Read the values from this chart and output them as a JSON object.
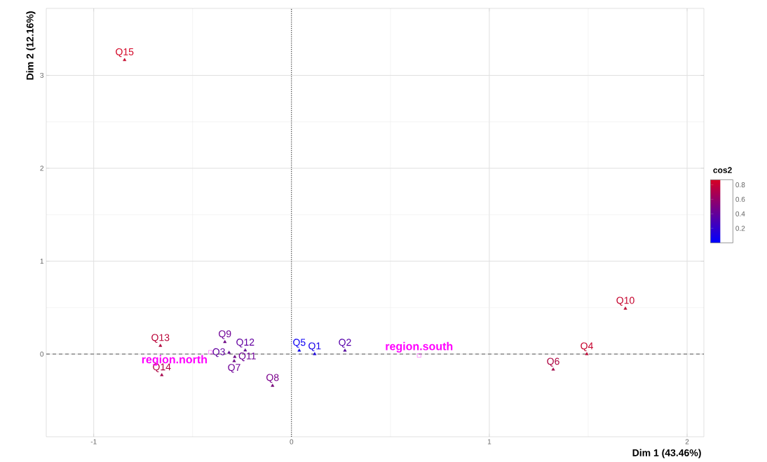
{
  "chart_data": {
    "type": "scatter",
    "xlabel": "Dim 1 (43.46%)",
    "ylabel": "Dim 2 (12.16%)",
    "clabel": "cos2",
    "xlim": [
      -1.24,
      2.085
    ],
    "ylim": [
      -0.89,
      3.72
    ],
    "xticks": [
      -1,
      0,
      1,
      2
    ],
    "yticks": [
      0,
      1,
      2,
      3
    ],
    "clim": [
      0,
      0.87
    ],
    "cticks": [
      0.2,
      0.4,
      0.6,
      0.8
    ],
    "grid": true,
    "series": [
      {
        "marker": "triangle",
        "x": [
          0.117,
          0.27,
          -0.316,
          1.493,
          0.039,
          1.323,
          -0.29,
          -0.096,
          -0.337,
          1.688,
          -0.287,
          -0.234,
          -0.663,
          -0.656,
          -0.844
        ],
        "values": [
          0.0,
          0.038,
          0.015,
          0.0,
          0.038,
          -0.166,
          -0.075,
          -0.34,
          0.13,
          0.49,
          -0.03,
          0.04,
          0.09,
          -0.226,
          3.165
        ],
        "cvalues": [
          0.1,
          0.35,
          0.4,
          0.8,
          0.05,
          0.7,
          0.45,
          0.5,
          0.45,
          0.8,
          0.45,
          0.4,
          0.75,
          0.7,
          0.85
        ],
        "colors": [
          "#1900ea",
          "#5700aa",
          "#6300a0",
          "#c5002b",
          "#0d00f5",
          "#ad003f",
          "#6f0096",
          "#7b008c",
          "#6f0096",
          "#c5002b",
          "#6f0096",
          "#6300a0",
          "#b90035",
          "#ad003f",
          "#d20022"
        ]
      },
      {
        "marker": "square",
        "color": "#ff00ff",
        "x": [
          -0.41,
          0.645
        ],
        "values": [
          0.02,
          -0.015
        ]
      }
    ],
    "ref_lines": [
      {
        "axis": "x",
        "value": 0,
        "line_style": "dotted"
      },
      {
        "axis": "y",
        "value": 0,
        "line_style": "dashed"
      }
    ],
    "annotations": [
      {
        "text": "Q1",
        "x": 0.117,
        "y": 0.0
      },
      {
        "text": "Q2",
        "x": 0.27,
        "y": 0.038
      },
      {
        "text": "Q3",
        "x": -0.316,
        "y": 0.015
      },
      {
        "text": "Q4",
        "x": 1.493,
        "y": 0.0
      },
      {
        "text": "Q5",
        "x": 0.039,
        "y": 0.038
      },
      {
        "text": "Q6",
        "x": 1.323,
        "y": -0.166
      },
      {
        "text": "Q7",
        "x": -0.29,
        "y": -0.075
      },
      {
        "text": "Q8",
        "x": -0.096,
        "y": -0.34
      },
      {
        "text": "Q9",
        "x": -0.337,
        "y": 0.13
      },
      {
        "text": "Q10",
        "x": 1.688,
        "y": 0.49
      },
      {
        "text": "Q11",
        "x": -0.287,
        "y": -0.03
      },
      {
        "text": "Q12",
        "x": -0.234,
        "y": 0.04
      },
      {
        "text": "Q13",
        "x": -0.663,
        "y": 0.09
      },
      {
        "text": "Q14",
        "x": -0.656,
        "y": -0.226
      },
      {
        "text": "Q15",
        "x": -0.844,
        "y": 3.165
      },
      {
        "text": "region.north",
        "x": -0.41,
        "y": 0.02
      },
      {
        "text": "region.south",
        "x": 0.645,
        "y": -0.015
      }
    ]
  }
}
